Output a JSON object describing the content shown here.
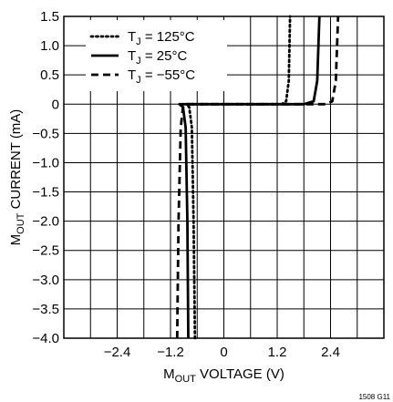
{
  "chart_data": {
    "type": "line",
    "xlabel": {
      "main": "M",
      "sub": "OUT",
      "rest": " VOLTAGE (V)"
    },
    "ylabel": {
      "main": "M",
      "sub": "OUT",
      "rest": " CURRENT (mA)"
    },
    "xlim": [
      -3.6,
      3.6
    ],
    "ylim": [
      -4.0,
      1.5
    ],
    "x_ticks": [
      -2.4,
      -1.2,
      0,
      1.2,
      2.4
    ],
    "x_tick_labels": [
      "−2.4",
      "−1.2",
      "0",
      "1.2",
      "2.4"
    ],
    "y_ticks": [
      1.5,
      1.0,
      0.5,
      0,
      -0.5,
      -1.0,
      -1.5,
      -2.0,
      -2.5,
      -3.0,
      -3.5,
      -4.0
    ],
    "y_tick_labels": [
      "1.5",
      "1.0",
      "0.5",
      "0",
      "−0.5",
      "−1.0",
      "−1.5",
      "−2.0",
      "−2.5",
      "−3.0",
      "−3.5",
      "−4.0"
    ],
    "grid": true,
    "legend_position": "top-left",
    "figure_label": "1508 G11",
    "series": [
      {
        "name": "T_J = 125°C",
        "legend": {
          "main": "T",
          "sub": "J",
          "rest": " = 125°C"
        },
        "style": "dotted",
        "points": [
          [
            -0.65,
            -4.0
          ],
          [
            -0.68,
            -2.0
          ],
          [
            -0.72,
            -0.4
          ],
          [
            -0.78,
            -0.05
          ],
          [
            -0.85,
            0
          ],
          [
            0,
            0
          ],
          [
            1.3,
            0
          ],
          [
            1.4,
            0.05
          ],
          [
            1.46,
            0.4
          ],
          [
            1.49,
            1.5
          ]
        ]
      },
      {
        "name": "T_J = 25°C",
        "legend": {
          "main": "T",
          "sub": "J",
          "rest": " = 25°C"
        },
        "style": "solid",
        "points": [
          [
            -0.8,
            -4.0
          ],
          [
            -0.82,
            -2.0
          ],
          [
            -0.86,
            -0.4
          ],
          [
            -0.92,
            -0.05
          ],
          [
            -1.0,
            0
          ],
          [
            0,
            0
          ],
          [
            1.8,
            0
          ],
          [
            2.02,
            0.05
          ],
          [
            2.1,
            0.4
          ],
          [
            2.15,
            1.5
          ]
        ]
      },
      {
        "name": "T_J = −55°C",
        "legend": {
          "main": "T",
          "sub": "J",
          "rest": " = −55°C"
        },
        "style": "dashed",
        "points": [
          [
            -1.05,
            -4.0
          ],
          [
            -1.02,
            -2.0
          ],
          [
            -0.97,
            -0.4
          ],
          [
            -0.92,
            -0.05
          ],
          [
            -0.85,
            0
          ],
          [
            0,
            0
          ],
          [
            2.3,
            0
          ],
          [
            2.44,
            0.05
          ],
          [
            2.52,
            0.4
          ],
          [
            2.57,
            1.5
          ]
        ]
      }
    ],
    "colors": {
      "line": "#000000",
      "grid": "#000000",
      "background": "#ffffff"
    }
  }
}
